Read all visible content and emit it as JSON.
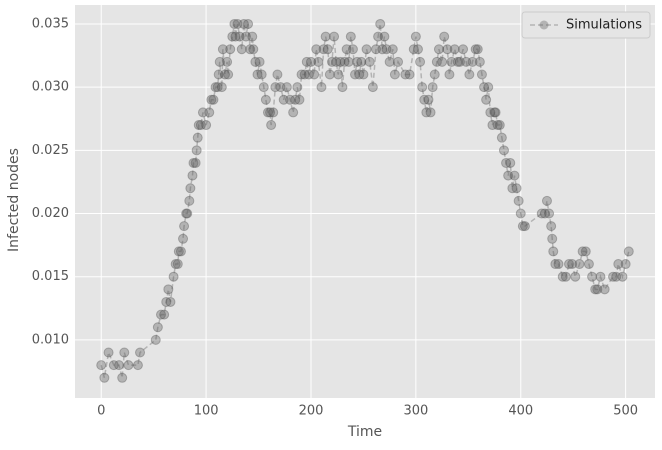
{
  "chart_data": {
    "type": "line",
    "xlabel": "Time",
    "ylabel": "Infected nodes",
    "x": [
      0,
      3,
      7,
      12,
      17,
      20,
      22,
      26,
      35,
      37,
      52,
      54,
      57,
      60,
      62,
      64,
      66,
      69,
      71,
      73,
      74,
      76,
      78,
      79,
      81,
      82,
      84,
      85,
      87,
      88,
      90,
      91,
      92,
      93,
      95,
      97,
      100,
      103,
      105,
      107,
      109,
      111,
      112,
      113,
      115,
      116,
      118,
      120,
      121,
      123,
      125,
      127,
      128,
      130,
      132,
      134,
      136,
      138,
      140,
      142,
      144,
      145,
      147,
      149,
      151,
      153,
      155,
      157,
      159,
      161,
      162,
      164,
      166,
      168,
      171,
      174,
      177,
      180,
      183,
      185,
      187,
      189,
      191,
      194,
      196,
      198,
      200,
      203,
      205,
      207,
      210,
      212,
      214,
      216,
      218,
      220,
      222,
      224,
      226,
      228,
      230,
      232,
      234,
      236,
      238,
      240,
      242,
      244,
      246,
      248,
      250,
      253,
      256,
      259,
      262,
      264,
      266,
      268,
      270,
      272,
      275,
      278,
      280,
      283,
      290,
      294,
      298,
      300,
      302,
      304,
      306,
      308,
      310,
      312,
      314,
      316,
      318,
      320,
      322,
      325,
      327,
      330,
      332,
      334,
      337,
      340,
      342,
      345,
      348,
      351,
      354,
      357,
      359,
      361,
      363,
      365,
      367,
      369,
      371,
      373,
      375,
      376,
      378,
      380,
      382,
      384,
      386,
      388,
      390,
      392,
      394,
      396,
      398,
      400,
      402,
      404,
      420,
      423,
      425,
      427,
      429,
      430,
      431,
      433,
      436,
      440,
      443,
      446,
      449,
      452,
      456,
      459,
      462,
      465,
      468,
      471,
      473,
      476,
      480,
      488,
      491,
      493,
      497,
      500,
      503
    ],
    "series": [
      {
        "name": "Simulations",
        "color": "#555555",
        "values": [
          0.008,
          0.007,
          0.009,
          0.008,
          0.008,
          0.007,
          0.009,
          0.008,
          0.008,
          0.009,
          0.01,
          0.011,
          0.012,
          0.012,
          0.013,
          0.014,
          0.013,
          0.015,
          0.016,
          0.016,
          0.017,
          0.017,
          0.018,
          0.019,
          0.02,
          0.02,
          0.021,
          0.022,
          0.023,
          0.024,
          0.024,
          0.025,
          0.026,
          0.027,
          0.027,
          0.028,
          0.027,
          0.028,
          0.029,
          0.029,
          0.03,
          0.03,
          0.031,
          0.032,
          0.03,
          0.033,
          0.031,
          0.032,
          0.031,
          0.033,
          0.034,
          0.035,
          0.034,
          0.035,
          0.034,
          0.033,
          0.035,
          0.034,
          0.035,
          0.033,
          0.034,
          0.033,
          0.032,
          0.031,
          0.032,
          0.031,
          0.03,
          0.029,
          0.028,
          0.028,
          0.027,
          0.028,
          0.03,
          0.031,
          0.03,
          0.029,
          0.03,
          0.029,
          0.028,
          0.029,
          0.03,
          0.029,
          0.031,
          0.031,
          0.032,
          0.031,
          0.032,
          0.031,
          0.033,
          0.032,
          0.03,
          0.033,
          0.034,
          0.033,
          0.031,
          0.032,
          0.034,
          0.032,
          0.031,
          0.032,
          0.03,
          0.032,
          0.033,
          0.032,
          0.034,
          0.033,
          0.031,
          0.032,
          0.031,
          0.032,
          0.031,
          0.033,
          0.032,
          0.03,
          0.033,
          0.034,
          0.035,
          0.033,
          0.034,
          0.033,
          0.032,
          0.033,
          0.031,
          0.032,
          0.031,
          0.031,
          0.033,
          0.034,
          0.033,
          0.032,
          0.03,
          0.029,
          0.028,
          0.029,
          0.028,
          0.03,
          0.031,
          0.032,
          0.033,
          0.032,
          0.034,
          0.033,
          0.031,
          0.032,
          0.033,
          0.032,
          0.032,
          0.033,
          0.032,
          0.031,
          0.032,
          0.033,
          0.033,
          0.032,
          0.031,
          0.03,
          0.029,
          0.03,
          0.028,
          0.027,
          0.028,
          0.028,
          0.027,
          0.027,
          0.026,
          0.025,
          0.024,
          0.023,
          0.024,
          0.022,
          0.023,
          0.022,
          0.021,
          0.02,
          0.019,
          0.019,
          0.02,
          0.02,
          0.021,
          0.02,
          0.019,
          0.018,
          0.017,
          0.016,
          0.016,
          0.015,
          0.015,
          0.016,
          0.016,
          0.015,
          0.016,
          0.017,
          0.017,
          0.016,
          0.015,
          0.014,
          0.014,
          0.015,
          0.014,
          0.015,
          0.015,
          0.016,
          0.015,
          0.016,
          0.017
        ]
      }
    ],
    "xlim": [
      -25,
      528
    ],
    "xticks": [
      0,
      100,
      200,
      300,
      400,
      500
    ],
    "ylim": [
      0.0054,
      0.0365
    ],
    "yticks": [
      {
        "value": 0.01,
        "label": "0.010"
      },
      0.015,
      {
        "value": 0.02,
        "label": "0.020"
      },
      0.025,
      {
        "value": 0.03,
        "label": "0.030"
      },
      0.035
    ],
    "grid": true,
    "legend": "upper right"
  }
}
